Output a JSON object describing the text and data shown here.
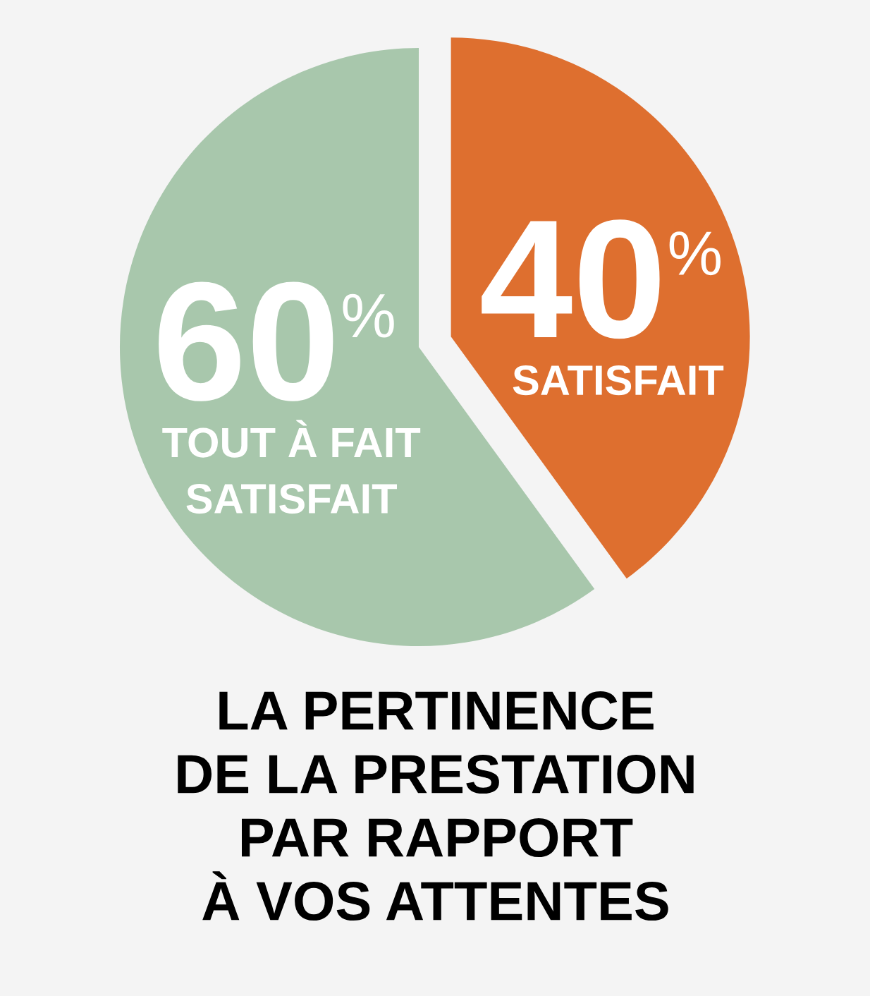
{
  "chart_data": {
    "type": "pie",
    "title": "LA PERTINENCE\nDE LA PRESTATION\nPAR RAPPORT\nÀ VOS ATTENTES",
    "categories": [
      "TOUT À FAIT\nSATISFAIT",
      "SATISFAIT"
    ],
    "values": [
      60,
      40
    ],
    "colors": [
      "#a8c7ac",
      "#de6f2f"
    ],
    "value_labels": [
      "60$^{%}$",
      "40$^{%}$"
    ]
  }
}
